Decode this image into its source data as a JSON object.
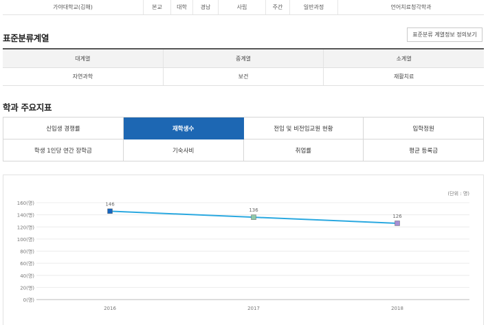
{
  "top_row": [
    "가야대학교(김해)",
    "본교",
    "대학",
    "경남",
    "사립",
    "주간",
    "일반과정",
    "언어치료청각학과"
  ],
  "standard_classification": {
    "title": "표준분류계열",
    "info_button": "표준분류 계열정보 정의보기",
    "headers": [
      "대계열",
      "중계열",
      "소계열"
    ],
    "values": [
      "자연과학",
      "보건",
      "재활치료"
    ]
  },
  "indicators": {
    "title": "학과 주요지표",
    "tabs": [
      {
        "label": "신입생 경쟁률",
        "active": false
      },
      {
        "label": "재학생수",
        "active": true
      },
      {
        "label": "전임 및 비전임교원 현황",
        "active": false
      },
      {
        "label": "입학정원",
        "active": false
      },
      {
        "label": "학생 1인당 연간 장학금",
        "active": false
      },
      {
        "label": "기숙사비",
        "active": false
      },
      {
        "label": "취업률",
        "active": false
      },
      {
        "label": "평균 등록금",
        "active": false
      }
    ]
  },
  "chart_data": {
    "type": "line",
    "unit_label": "(단위 : 명)",
    "x": [
      "2016",
      "2017",
      "2018"
    ],
    "series": [
      {
        "values": [
          146,
          136,
          126
        ],
        "color": "#29a8e0",
        "marker_colors": [
          "#1565c0",
          "#8fc9a8",
          "#a58fd4"
        ]
      }
    ],
    "yticks": [
      "0(명)",
      "20(명)",
      "40(명)",
      "60(명)",
      "80(명)",
      "100(명)",
      "120(명)",
      "140(명)",
      "160(명)"
    ],
    "ylim": [
      0,
      160
    ],
    "grid": true
  }
}
